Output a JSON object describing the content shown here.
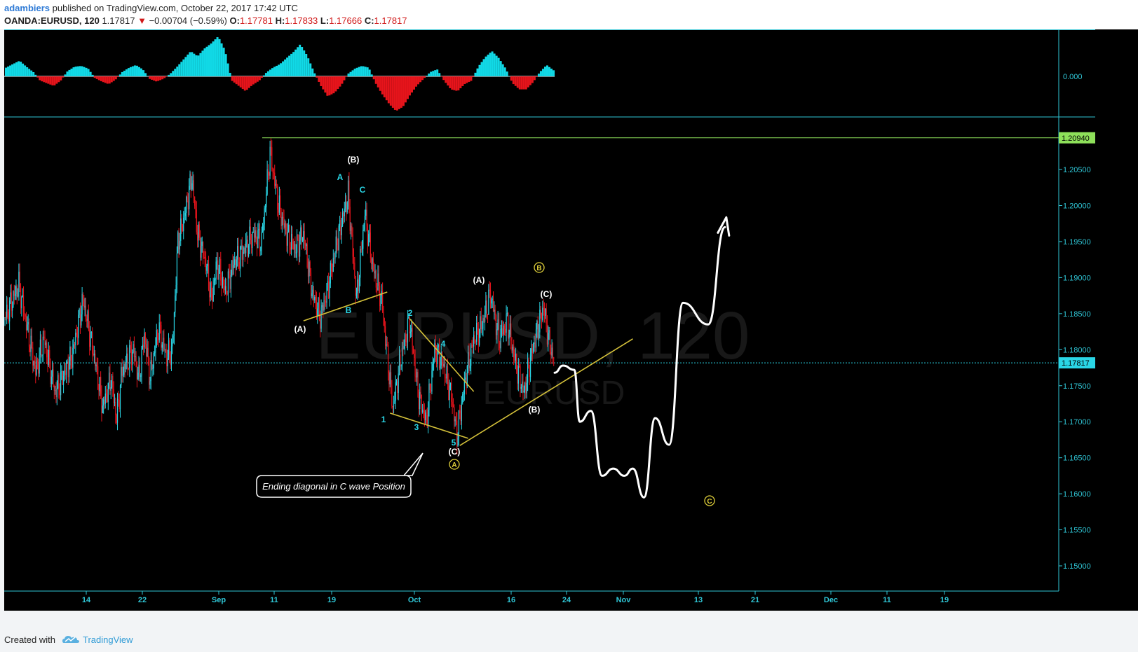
{
  "header": {
    "author": "adambiers",
    "published": "published on TradingView.com, October 22, 2017 17:42 UTC",
    "symbol": "OANDA:EURUSD, 120",
    "last": "1.17817",
    "change": "−0.00704 (−0.59%)",
    "o_label": "O:",
    "o": "1.17781",
    "h_label": "H:",
    "h": "1.17833",
    "l_label": "L:",
    "l": "1.17666",
    "c_label": "C:",
    "c": "1.17817"
  },
  "watermark": {
    "main": "EURUSD, 120",
    "sub": "EURUSD"
  },
  "footer": {
    "created": "Created with",
    "brand": "TradingView"
  },
  "colors": {
    "up": "#2ad6e6",
    "down": "#e8141c",
    "osc_up": "#11d9e6",
    "osc_down": "#e6141b",
    "trendline": "#d4c13a",
    "green_level": "#8ee05a",
    "white_path": "#ffffff"
  },
  "chart_data": {
    "type": "candlestick",
    "y_axis": {
      "ticks": [
        "1.15000",
        "1.15500",
        "1.16000",
        "1.16500",
        "1.17000",
        "1.17500",
        "1.18000",
        "1.18500",
        "1.19000",
        "1.19500",
        "1.20000",
        "1.20500"
      ],
      "range": [
        1.1455,
        1.2115
      ]
    },
    "x_axis": {
      "ticks": [
        "14",
        "22",
        "Sep",
        "11",
        "19",
        "Oct",
        "16",
        "24",
        "Nov",
        "13",
        "21",
        "Dec",
        "11",
        "19"
      ]
    },
    "oscillator": {
      "zero_label": "0.000"
    },
    "price_marks": [
      {
        "label": "1.20940",
        "value": 1.2094,
        "style": "green"
      },
      {
        "label": "1.17817",
        "value": 1.17817,
        "style": "cyan"
      }
    ],
    "price_path": [
      {
        "t": 0,
        "p": 1.1845
      },
      {
        "t": 5,
        "p": 1.189
      },
      {
        "t": 11,
        "p": 1.177
      },
      {
        "t": 14,
        "p": 1.1815
      },
      {
        "t": 18,
        "p": 1.174
      },
      {
        "t": 24,
        "p": 1.179
      },
      {
        "t": 28,
        "p": 1.187
      },
      {
        "t": 32,
        "p": 1.179
      },
      {
        "t": 35,
        "p": 1.172
      },
      {
        "t": 38,
        "p": 1.176
      },
      {
        "t": 40,
        "p": 1.1705
      },
      {
        "t": 42,
        "p": 1.177
      },
      {
        "t": 46,
        "p": 1.18
      },
      {
        "t": 48,
        "p": 1.176
      },
      {
        "t": 50,
        "p": 1.182
      },
      {
        "t": 52,
        "p": 1.176
      },
      {
        "t": 55,
        "p": 1.183
      },
      {
        "t": 58,
        "p": 1.179
      },
      {
        "t": 60,
        "p": 1.18
      },
      {
        "t": 62,
        "p": 1.195
      },
      {
        "t": 64,
        "p": 1.198
      },
      {
        "t": 67,
        "p": 1.204
      },
      {
        "t": 69,
        "p": 1.196
      },
      {
        "t": 72,
        "p": 1.192
      },
      {
        "t": 74,
        "p": 1.187
      },
      {
        "t": 76,
        "p": 1.192
      },
      {
        "t": 79,
        "p": 1.188
      },
      {
        "t": 82,
        "p": 1.192
      },
      {
        "t": 86,
        "p": 1.194
      },
      {
        "t": 89,
        "p": 1.196
      },
      {
        "t": 92,
        "p": 1.195
      },
      {
        "t": 95,
        "p": 1.2075
      },
      {
        "t": 98,
        "p": 1.2
      },
      {
        "t": 101,
        "p": 1.196
      },
      {
        "t": 104,
        "p": 1.194
      },
      {
        "t": 107,
        "p": 1.196
      },
      {
        "t": 110,
        "p": 1.188
      },
      {
        "t": 113,
        "p": 1.1845
      },
      {
        "t": 116,
        "p": 1.189
      },
      {
        "t": 119,
        "p": 1.195
      },
      {
        "t": 123,
        "p": 1.2015
      },
      {
        "t": 126,
        "p": 1.187
      },
      {
        "t": 129,
        "p": 1.199
      },
      {
        "t": 132,
        "p": 1.191
      },
      {
        "t": 135,
        "p": 1.187
      },
      {
        "t": 137,
        "p": 1.179
      },
      {
        "t": 139,
        "p": 1.172
      },
      {
        "t": 142,
        "p": 1.179
      },
      {
        "t": 145,
        "p": 1.184
      },
      {
        "t": 148,
        "p": 1.174
      },
      {
        "t": 151,
        "p": 1.17
      },
      {
        "t": 154,
        "p": 1.18
      },
      {
        "t": 157,
        "p": 1.178
      },
      {
        "t": 160,
        "p": 1.1735
      },
      {
        "t": 162,
        "p": 1.168
      },
      {
        "t": 165,
        "p": 1.176
      },
      {
        "t": 168,
        "p": 1.1815
      },
      {
        "t": 171,
        "p": 1.1835
      },
      {
        "t": 174,
        "p": 1.1878
      },
      {
        "t": 177,
        "p": 1.1815
      },
      {
        "t": 180,
        "p": 1.184
      },
      {
        "t": 183,
        "p": 1.178
      },
      {
        "t": 186,
        "p": 1.174
      },
      {
        "t": 189,
        "p": 1.18
      },
      {
        "t": 191,
        "p": 1.183
      },
      {
        "t": 193,
        "p": 1.186
      },
      {
        "t": 195,
        "p": 1.181
      },
      {
        "t": 197,
        "p": 1.1782
      }
    ],
    "oscillator_values": [
      20,
      28,
      36,
      22,
      10,
      -10,
      -16,
      -22,
      -10,
      12,
      22,
      24,
      18,
      -4,
      -12,
      -18,
      -8,
      10,
      20,
      26,
      16,
      -6,
      -12,
      -6,
      6,
      22,
      40,
      58,
      46,
      64,
      76,
      92,
      60,
      -10,
      -22,
      -34,
      -20,
      -10,
      8,
      20,
      28,
      42,
      56,
      74,
      48,
      10,
      -22,
      -46,
      -38,
      -20,
      6,
      18,
      24,
      20,
      -16,
      -42,
      -64,
      -80,
      -70,
      -44,
      -22,
      -6,
      10,
      16,
      -10,
      -30,
      -34,
      -18,
      -10,
      22,
      44,
      58,
      42,
      18,
      -16,
      -30,
      -30,
      -14,
      10,
      26,
      14
    ],
    "annotations": [
      {
        "text": "(B)",
        "color": "white"
      },
      {
        "text": "A",
        "color": "cyan"
      },
      {
        "text": "C",
        "color": "cyan"
      },
      {
        "text": "(A)",
        "color": "white"
      },
      {
        "text": "B",
        "color": "cyan"
      },
      {
        "text": "1",
        "color": "cyan"
      },
      {
        "text": "2",
        "color": "cyan"
      },
      {
        "text": "3",
        "color": "cyan"
      },
      {
        "text": "4",
        "color": "cyan"
      },
      {
        "text": "5",
        "color": "cyan"
      },
      {
        "text": "(C)",
        "color": "white"
      },
      {
        "text": "A",
        "color": "yellow-circled"
      },
      {
        "text": "(A)",
        "color": "white"
      },
      {
        "text": "(C)",
        "color": "white"
      },
      {
        "text": "(B)",
        "color": "white"
      },
      {
        "text": "B",
        "color": "yellow-circled"
      },
      {
        "text": "C",
        "color": "yellow-circled"
      }
    ],
    "callout": "Ending diagonal in C wave Position",
    "projection": [
      {
        "t": 197,
        "p": 1.1768
      },
      {
        "t": 200,
        "p": 1.1778
      },
      {
        "t": 204,
        "p": 1.1772
      },
      {
        "t": 206,
        "p": 1.17
      },
      {
        "t": 210,
        "p": 1.1715
      },
      {
        "t": 214,
        "p": 1.1625
      },
      {
        "t": 218,
        "p": 1.1635
      },
      {
        "t": 222,
        "p": 1.1625
      },
      {
        "t": 225,
        "p": 1.1635
      },
      {
        "t": 229,
        "p": 1.1595
      },
      {
        "t": 233,
        "p": 1.1705
      },
      {
        "t": 238,
        "p": 1.1668
      },
      {
        "t": 243,
        "p": 1.1865
      },
      {
        "t": 252,
        "p": 1.1835
      },
      {
        "t": 258,
        "p": 1.197
      }
    ],
    "trendlines": [
      {
        "from": {
          "t": 107,
          "p": 1.184
        },
        "to": {
          "t": 137,
          "p": 1.188
        }
      },
      {
        "from": {
          "t": 138,
          "p": 1.1712
        },
        "to": {
          "t": 166,
          "p": 1.1677
        }
      },
      {
        "from": {
          "t": 145,
          "p": 1.1843
        },
        "to": {
          "t": 168,
          "p": 1.1742
        }
      },
      {
        "from": {
          "t": 163,
          "p": 1.1667
        },
        "to": {
          "t": 225,
          "p": 1.1815
        }
      }
    ]
  }
}
